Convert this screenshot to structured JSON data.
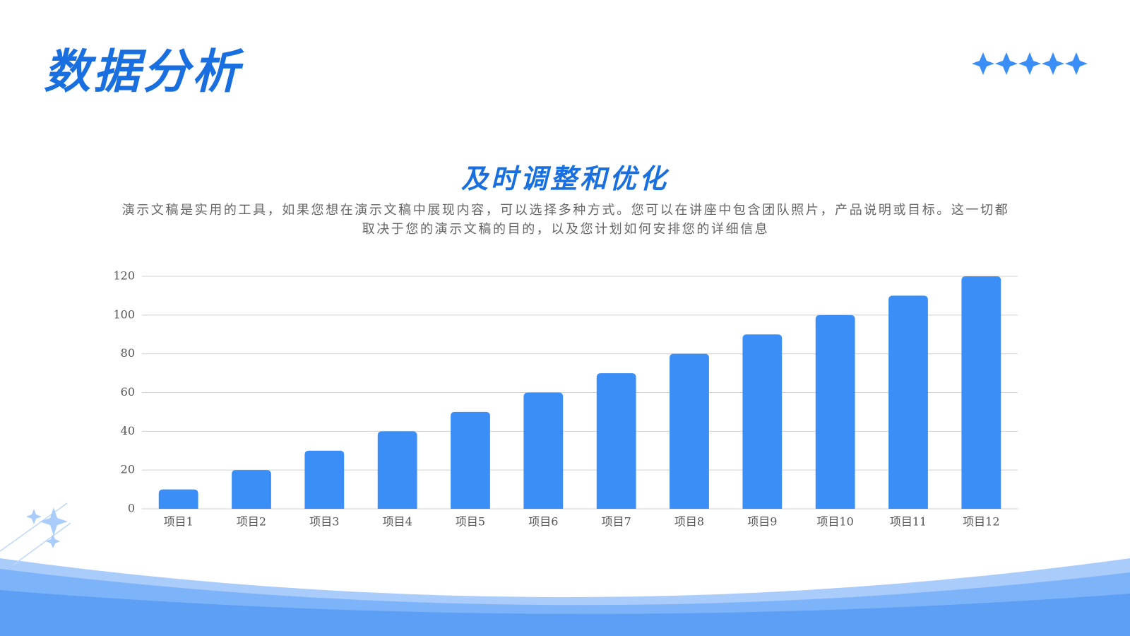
{
  "header": {
    "title": "数据分析"
  },
  "chart_data": {
    "type": "bar",
    "title": "及时调整和优化",
    "subtitle": "演示文稿是实用的工具，如果您想在演示文稿中展现内容，可以选择多种方式。您可以在讲座中包含团队照片，产品说明或目标。这一切都取决于您的演示文稿的目的，以及您计划如何安排您的详细信息",
    "categories": [
      "项目1",
      "项目2",
      "项目3",
      "项目4",
      "项目5",
      "项目6",
      "项目7",
      "项目8",
      "项目9",
      "项目10",
      "项目11",
      "项目12"
    ],
    "values": [
      10,
      20,
      30,
      40,
      50,
      60,
      70,
      80,
      90,
      100,
      110,
      120
    ],
    "color": "#3a8ef6",
    "ylim": [
      0,
      120
    ],
    "yticks": [
      0,
      20,
      40,
      60,
      80,
      100,
      120
    ],
    "grid": true
  }
}
